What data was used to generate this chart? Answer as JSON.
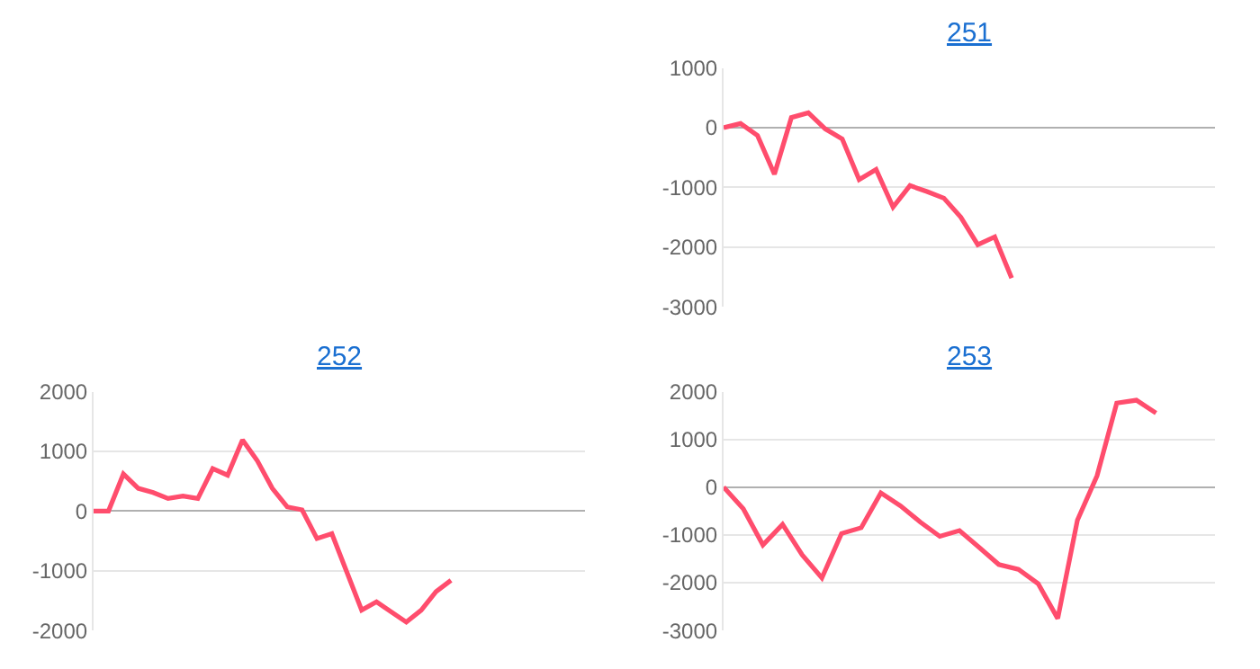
{
  "chart_data": [
    {
      "type": "line",
      "title": "251",
      "categories": [
        null,
        null,
        null,
        null,
        null,
        null,
        null,
        null,
        null,
        null,
        null,
        null,
        null,
        null,
        null,
        null,
        null,
        null,
        null,
        null,
        null,
        null,
        null,
        null,
        null,
        null,
        null,
        null,
        null,
        null
      ],
      "tick_labels": "y",
      "grid": "y",
      "ylim": [
        -3000,
        1000
      ],
      "yticks": [
        -3000,
        -2000,
        -1000,
        0,
        1000
      ],
      "marker": "none",
      "series": [
        {
          "color": "#ff4d6d",
          "values": [
            0,
            70,
            -130,
            -780,
            170,
            250,
            -20,
            -190,
            -870,
            -700,
            -1330,
            -970,
            -1070,
            -1180,
            -1500,
            -1960,
            -1830,
            -2520,
            null,
            null,
            null,
            null,
            null,
            null,
            null,
            null,
            null,
            null,
            null,
            null
          ]
        }
      ]
    },
    {
      "type": "line",
      "title": "252",
      "categories": [
        null,
        null,
        null,
        null,
        null,
        null,
        null,
        null,
        null,
        null,
        null,
        null,
        null,
        null,
        null,
        null,
        null,
        null,
        null,
        null,
        null,
        null,
        null,
        null,
        null,
        null,
        null,
        null,
        null,
        null,
        null,
        null,
        null,
        null
      ],
      "tick_labels": "y",
      "grid": "y",
      "ylim": [
        -2000,
        2000
      ],
      "yticks": [
        -2000,
        -1000,
        0,
        1000,
        2000
      ],
      "marker": "none",
      "series": [
        {
          "color": "#ff4d6d",
          "values": [
            0,
            0,
            620,
            380,
            310,
            210,
            250,
            210,
            710,
            600,
            1190,
            840,
            380,
            70,
            20,
            -460,
            -380,
            -1020,
            -1660,
            -1520,
            -1690,
            -1860,
            -1660,
            -1350,
            -1160,
            null,
            null,
            null,
            null,
            null,
            null,
            null,
            null,
            null
          ]
        }
      ]
    },
    {
      "type": "line",
      "title": "253",
      "categories": [
        null,
        null,
        null,
        null,
        null,
        null,
        null,
        null,
        null,
        null,
        null,
        null,
        null,
        null,
        null,
        null,
        null,
        null,
        null,
        null,
        null,
        null,
        null,
        null,
        null,
        null
      ],
      "tick_labels": "y",
      "grid": "y",
      "ylim": [
        -3000,
        2000
      ],
      "yticks": [
        -3000,
        -2000,
        -1000,
        0,
        1000,
        2000
      ],
      "marker": "none",
      "series": [
        {
          "color": "#ff4d6d",
          "values": [
            0,
            -450,
            -1210,
            -780,
            -1420,
            -1900,
            -970,
            -850,
            -120,
            -390,
            -730,
            -1030,
            -910,
            -1260,
            -1620,
            -1720,
            -2020,
            -2750,
            -690,
            240,
            1760,
            1820,
            1550,
            null,
            null,
            null
          ]
        }
      ]
    }
  ]
}
